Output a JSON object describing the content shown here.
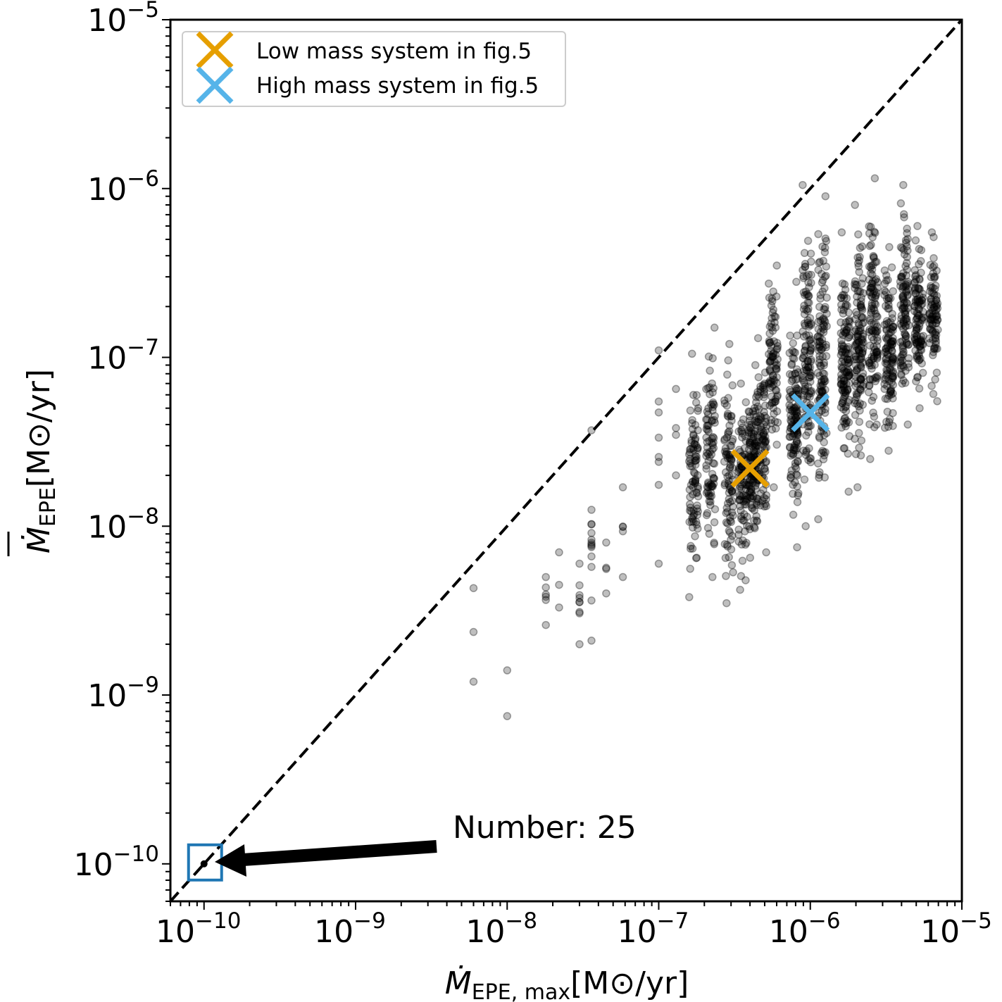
{
  "chart_data": {
    "type": "scatter",
    "title": "",
    "xscale": "log",
    "yscale": "log",
    "xlim": [
      6e-11,
      1e-05
    ],
    "ylim": [
      6e-11,
      1e-05
    ],
    "xlabel": {
      "base": "Ṁ",
      "sub": "EPE, max",
      "unit": "[M⊙/yr]"
    },
    "ylabel": {
      "base": "Ṁ",
      "sub": "EPE",
      "unit": "[M⊙/yr]"
    },
    "x_ticks": [
      {
        "value": 1e-10,
        "mantissa": "10",
        "exp": "−10"
      },
      {
        "value": 1e-09,
        "mantissa": "10",
        "exp": "−9"
      },
      {
        "value": 1e-08,
        "mantissa": "10",
        "exp": "−8"
      },
      {
        "value": 1e-07,
        "mantissa": "10",
        "exp": "−7"
      },
      {
        "value": 1e-06,
        "mantissa": "10",
        "exp": "−6"
      },
      {
        "value": 1e-05,
        "mantissa": "10",
        "exp": "−5"
      }
    ],
    "y_ticks": [
      {
        "value": 1e-10,
        "mantissa": "10",
        "exp": "−10"
      },
      {
        "value": 1e-09,
        "mantissa": "10",
        "exp": "−9"
      },
      {
        "value": 1e-08,
        "mantissa": "10",
        "exp": "−8"
      },
      {
        "value": 1e-07,
        "mantissa": "10",
        "exp": "−7"
      },
      {
        "value": 1e-06,
        "mantissa": "10",
        "exp": "−6"
      },
      {
        "value": 1e-05,
        "mantissa": "10",
        "exp": "−5"
      }
    ],
    "reference_line": {
      "type": "y=x",
      "style": "dashed",
      "color": "#000000"
    },
    "point_color": "#000000",
    "point_alpha": 0.25,
    "columns": [
      {
        "x": 6e-09,
        "y_min": 1.2e-09,
        "y_max": 4.3e-09,
        "n": 3
      },
      {
        "x": 1e-08,
        "y_min": 7.5e-10,
        "y_max": 1.4e-09,
        "n": 2
      },
      {
        "x": 1.8e-08,
        "y_min": 2.6e-09,
        "y_max": 5e-09,
        "n": 6
      },
      {
        "x": 2.2e-08,
        "y_min": 3.3e-09,
        "y_max": 7e-09,
        "n": 3
      },
      {
        "x": 3e-08,
        "y_min": 2e-09,
        "y_max": 6e-09,
        "n": 9
      },
      {
        "x": 3.6e-08,
        "y_min": 2.1e-09,
        "y_max": 3.7e-08,
        "n": 14
      },
      {
        "x": 4.5e-08,
        "y_min": 4e-09,
        "y_max": 8e-09,
        "n": 4
      },
      {
        "x": 5.8e-08,
        "y_min": 5e-09,
        "y_max": 1.7e-08,
        "n": 5
      },
      {
        "x": 1e-07,
        "y_min": 6e-09,
        "y_max": 1.1e-07,
        "n": 8
      },
      {
        "x": 1.3e-07,
        "y_min": 2e-08,
        "y_max": 6.5e-08,
        "n": 4
      },
      {
        "x": 1.7e-07,
        "y_min": 3.8e-09,
        "y_max": 1.05e-07,
        "n": 90
      },
      {
        "x": 2.2e-07,
        "y_min": 5e-09,
        "y_max": 1.5e-07,
        "n": 90
      },
      {
        "x": 2.9e-07,
        "y_min": 3.5e-09,
        "y_max": 1.2e-07,
        "n": 90
      },
      {
        "x": 3.6e-07,
        "y_min": 4.2e-09,
        "y_max": 7e-08,
        "n": 90
      },
      {
        "x": 4.2e-07,
        "y_min": 6.5e-09,
        "y_max": 9e-08,
        "n": 130
      },
      {
        "x": 4.8e-07,
        "y_min": 7e-09,
        "y_max": 1.3e-07,
        "n": 90
      },
      {
        "x": 5.7e-07,
        "y_min": 1.7e-08,
        "y_max": 3.5e-07,
        "n": 90
      },
      {
        "x": 7.8e-07,
        "y_min": 7.5e-09,
        "y_max": 2.8e-07,
        "n": 130
      },
      {
        "x": 9.5e-07,
        "y_min": 1e-08,
        "y_max": 1.05e-06,
        "n": 130
      },
      {
        "x": 1.2e-06,
        "y_min": 1.1e-08,
        "y_max": 9e-07,
        "n": 130
      },
      {
        "x": 1.7e-06,
        "y_min": 1.6e-08,
        "y_max": 5.5e-07,
        "n": 130
      },
      {
        "x": 2.1e-06,
        "y_min": 1.7e-08,
        "y_max": 8e-07,
        "n": 130
      },
      {
        "x": 2.6e-06,
        "y_min": 2.5e-08,
        "y_max": 1.15e-06,
        "n": 120
      },
      {
        "x": 3.3e-06,
        "y_min": 2.8e-08,
        "y_max": 4.5e-07,
        "n": 120
      },
      {
        "x": 4.2e-06,
        "y_min": 4e-08,
        "y_max": 1.05e-06,
        "n": 110
      },
      {
        "x": 5.2e-06,
        "y_min": 5e-08,
        "y_max": 6e-07,
        "n": 110
      },
      {
        "x": 6.5e-06,
        "y_min": 5.5e-08,
        "y_max": 5.5e-07,
        "n": 90
      }
    ],
    "series": [
      {
        "name": "Low mass system in fig.5",
        "color": "#E69F00",
        "marker": "x",
        "x": 4e-07,
        "y": 2.2e-08
      },
      {
        "name": "High mass system in fig.5",
        "color": "#56B4E9",
        "marker": "x",
        "x": 1e-06,
        "y": 4.7e-08
      }
    ],
    "legend": {
      "position": "top-left"
    },
    "highlight": {
      "x": 1e-10,
      "y": 1e-10,
      "box_color": "#1f77b4"
    },
    "annotation": {
      "text": "Number: 25",
      "arrow_to": [
        1e-10,
        1e-10
      ]
    }
  }
}
